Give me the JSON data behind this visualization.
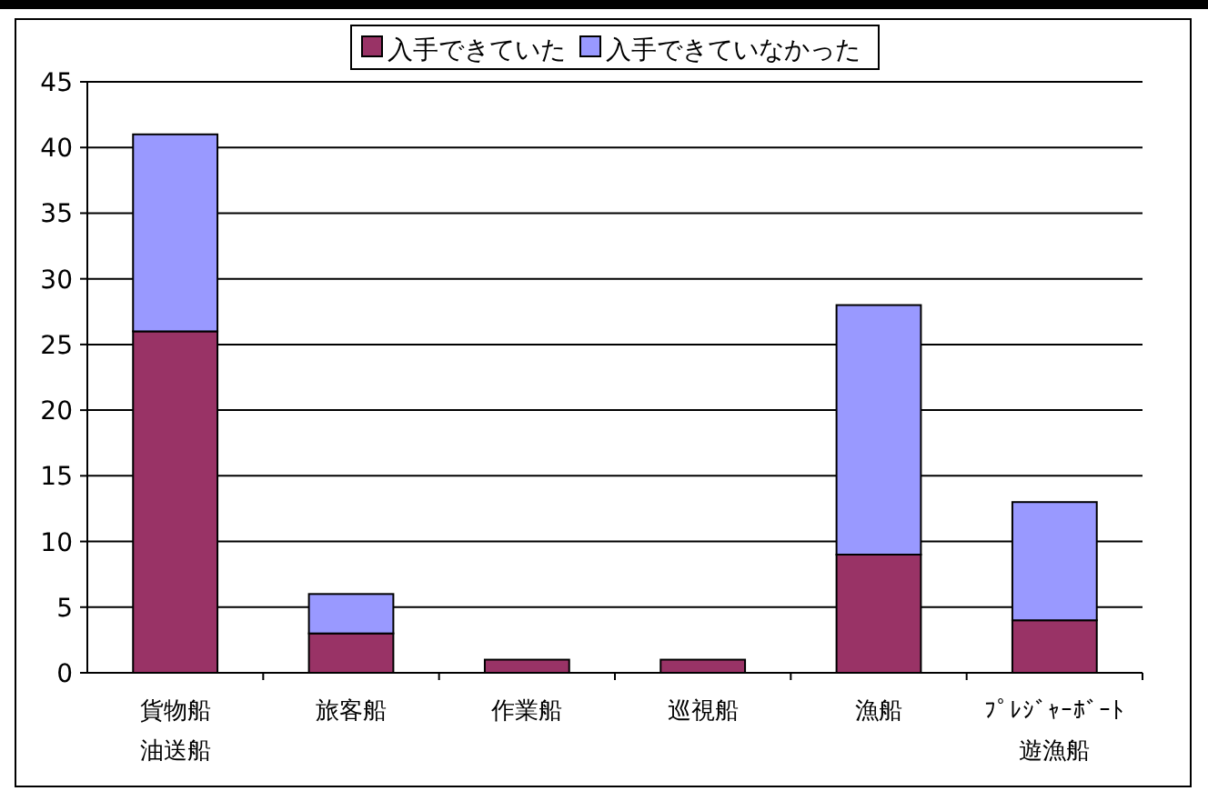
{
  "chart_data": {
    "type": "bar",
    "stacked": true,
    "categories": [
      "貨物船油送船",
      "旅客船",
      "作業船",
      "巡視船",
      "漁船",
      "ﾌﾟﾚｼﾞｬｰﾎﾞｰﾄ遊漁船"
    ],
    "series": [
      {
        "name": "入手できていた",
        "color": "#993366",
        "values": [
          26,
          3,
          1,
          1,
          9,
          4
        ]
      },
      {
        "name": "入手できていなかった",
        "color": "#9999ff",
        "values": [
          15,
          3,
          0,
          0,
          19,
          9
        ]
      }
    ],
    "ylim": [
      0,
      45
    ],
    "yticks": [
      0,
      5,
      10,
      15,
      20,
      25,
      30,
      35,
      40,
      45
    ],
    "grid": "y",
    "legend": "top"
  }
}
